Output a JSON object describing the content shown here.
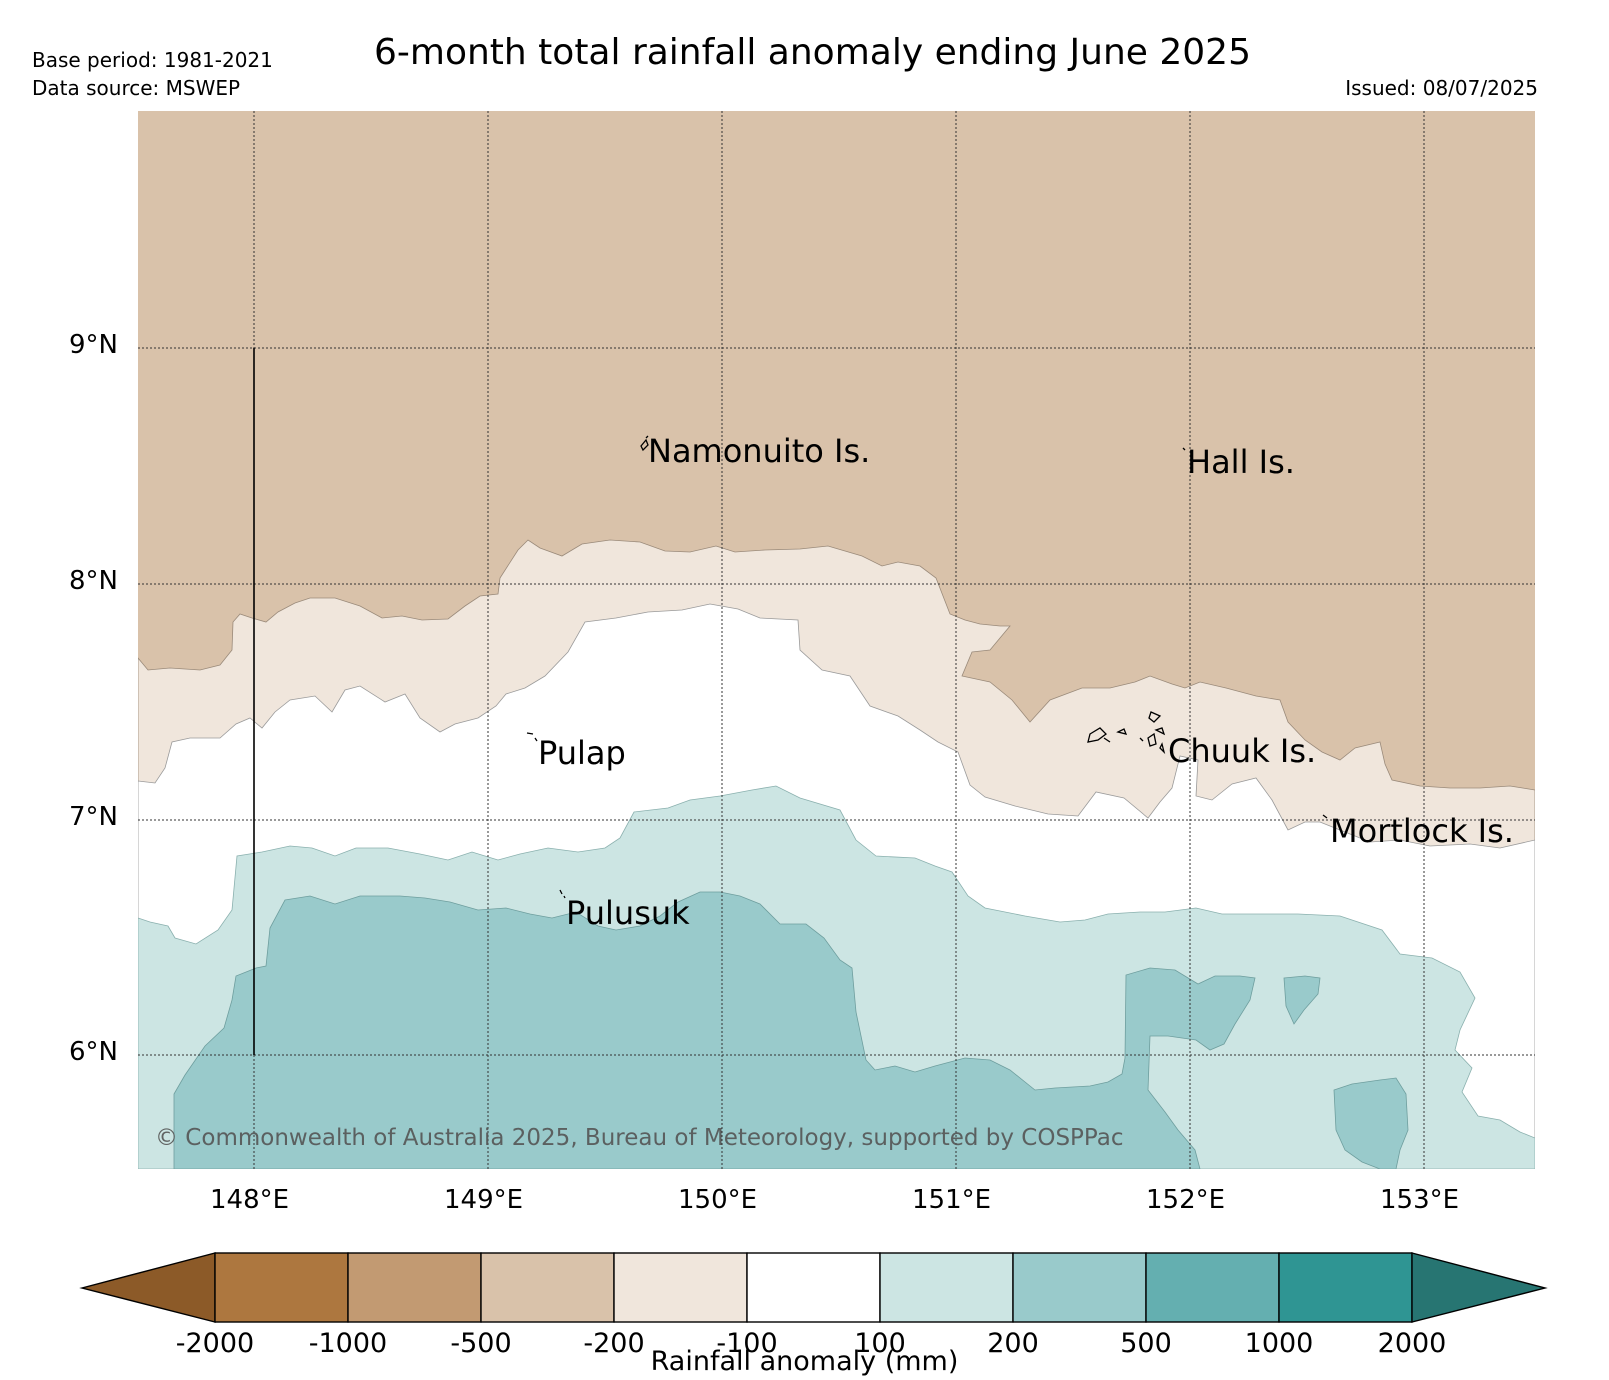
{
  "header": {
    "title": "6-month total rainfall anomaly ending June 2025",
    "base_period": "Base period: 1981-2021",
    "data_source": "Data source: MSWEP",
    "issued": "Issued: 08/07/2025"
  },
  "map": {
    "lon_ticks": [
      "148°E",
      "149°E",
      "150°E",
      "151°E",
      "152°E",
      "153°E"
    ],
    "lat_ticks": [
      "9°N",
      "8°N",
      "7°N",
      "6°N"
    ],
    "lon_range": [
      147.5,
      153.5
    ],
    "lat_range": [
      5.5,
      10.0
    ],
    "gridlines": true,
    "places": {
      "namonuito": "Namonuito Is.",
      "hall": "Hall Is.",
      "pulap": "Pulap",
      "chuuk": "Chuuk Is.",
      "mortlock": "Mortlock Is.",
      "pulusuk": "Pulusuk"
    },
    "copyright": "© Commonwealth of Australia 2025, Bureau of Meteorology, supported by COSPPac"
  },
  "colorbar": {
    "label": "Rainfall anomaly (mm)",
    "ticks": [
      "-2000",
      "-1000",
      "-500",
      "-200",
      "-100",
      "100",
      "200",
      "500",
      "1000",
      "2000"
    ],
    "colors": [
      "#8c5a28",
      "#ad773f",
      "#c29a72",
      "#d9c2aa",
      "#f0e6dc",
      "#ffffff",
      "#cce5e3",
      "#99cacb",
      "#64afb0",
      "#2f9593",
      "#277572"
    ]
  },
  "colors": {
    "dry_200_500": "#d9c2aa",
    "dry_100_200": "#f0e6dc",
    "neutral": "#ffffff",
    "wet_100_200": "#cce5e3",
    "wet_200_500": "#99cacb"
  }
}
